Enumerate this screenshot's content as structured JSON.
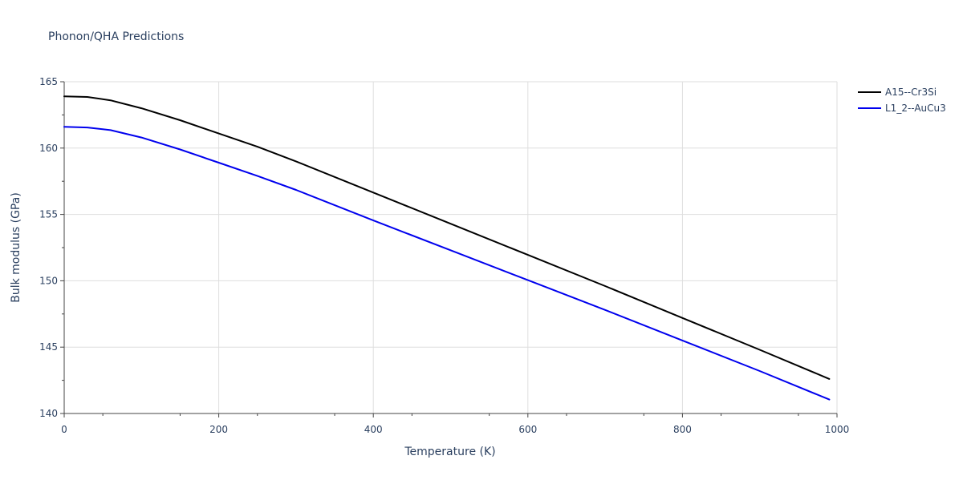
{
  "chart_data": {
    "type": "line",
    "title": "Phonon/QHA Predictions",
    "xlabel": "Temperature (K)",
    "ylabel": "Bulk modulus (GPa)",
    "xlim": [
      0,
      1000
    ],
    "ylim": [
      140,
      165
    ],
    "xticks": [
      0,
      200,
      400,
      600,
      800,
      1000
    ],
    "yticks": [
      140,
      145,
      150,
      155,
      160,
      165
    ],
    "grid": true,
    "legend": "top-right",
    "series": [
      {
        "name": "A15--Cr3Si",
        "color": "#000000",
        "x": [
          0,
          30,
          60,
          100,
          150,
          200,
          250,
          300,
          400,
          500,
          600,
          700,
          800,
          900,
          990
        ],
        "y": [
          163.9,
          163.85,
          163.6,
          163.0,
          162.1,
          161.1,
          160.1,
          159.0,
          156.65,
          154.3,
          151.95,
          149.6,
          147.2,
          144.8,
          142.6
        ]
      },
      {
        "name": "L1_2--AuCu3",
        "color": "#0000ee",
        "x": [
          0,
          30,
          60,
          100,
          150,
          200,
          250,
          300,
          400,
          500,
          600,
          700,
          800,
          900,
          990
        ],
        "y": [
          161.6,
          161.55,
          161.35,
          160.8,
          159.9,
          158.9,
          157.9,
          156.85,
          154.55,
          152.3,
          150.05,
          147.8,
          145.5,
          143.2,
          141.05
        ]
      }
    ]
  }
}
